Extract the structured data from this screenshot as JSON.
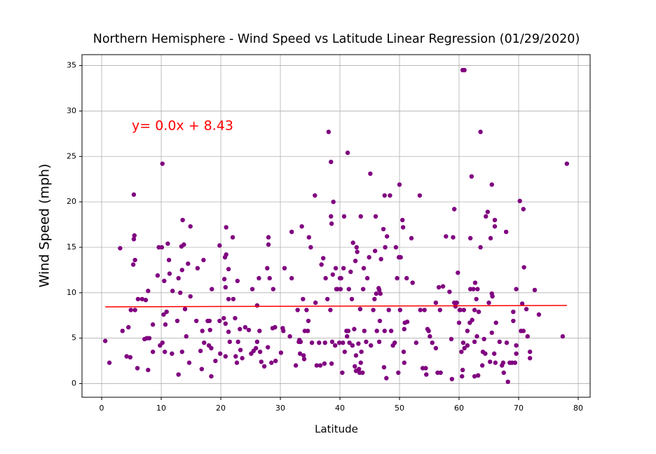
{
  "chart_data": {
    "type": "scatter",
    "title": "Northern Hemisphere - Wind Speed vs Latitude Linear Regression (01/29/2020)",
    "x_label": "Latitude",
    "y_label": "Wind Speed (mph)",
    "annotation": "y= 0.0x + 8.43",
    "annotation_color": "red",
    "color": "purple",
    "grid": true,
    "xlim": [
      -3.3,
      82
    ],
    "ylim": [
      -1.5,
      36.2
    ],
    "xticks": [
      0,
      10,
      20,
      30,
      40,
      50,
      60,
      70,
      80
    ],
    "yticks": [
      0,
      5,
      10,
      15,
      20,
      25,
      30,
      35
    ],
    "regression_line": {
      "color": "red",
      "x": [
        0.6,
        78.1
      ],
      "values": [
        8.45,
        8.6
      ]
    },
    "x": [
      0.6,
      1.3,
      3.1,
      3.5,
      4.2,
      4.5,
      4.8,
      4.9,
      5.4,
      5.4,
      5.3,
      5.5,
      5.6,
      5.6,
      6.0,
      6.1,
      6.8,
      7.2,
      7.4,
      7.6,
      7.8,
      7.8,
      8.0,
      8.6,
      8.6,
      9.4,
      9.6,
      9.8,
      10.1,
      10.2,
      10.2,
      10.4,
      10.5,
      10.6,
      10.7,
      10.9,
      11.1,
      11.3,
      11.4,
      11.8,
      11.9,
      12.7,
      12.9,
      12.9,
      13.2,
      13.4,
      13.5,
      13.5,
      13.6,
      13.8,
      14.0,
      14.2,
      14.5,
      14.7,
      14.9,
      14.9,
      15.9,
      16.1,
      16.6,
      16.8,
      16.9,
      17.1,
      17.2,
      17.8,
      18.0,
      18.1,
      18.2,
      18.4,
      18.5,
      18.4,
      19.1,
      19.8,
      19.8,
      19.9,
      20.5,
      20.6,
      20.7,
      20.8,
      20.8,
      20.8,
      20.9,
      20.9,
      21.3,
      21.3,
      21.3,
      21.5,
      22.0,
      22.1,
      22.4,
      22.5,
      22.7,
      22.8,
      22.9,
      23.2,
      23.3,
      23.6,
      24.1,
      24.7,
      25.1,
      25.3,
      25.5,
      25.9,
      26.1,
      26.1,
      26.4,
      26.5,
      26.6,
      26.8,
      27.3,
      27.8,
      27.9,
      28.0,
      28.0,
      28.2,
      28.5,
      28.7,
      28.8,
      29.1,
      29.2,
      30.1,
      30.4,
      30.5,
      30.7,
      31.6,
      31.9,
      31.9,
      32.6,
      32.9,
      33.1,
      33.2,
      33.3,
      33.4,
      33.6,
      33.8,
      33.9,
      34.0,
      34.1,
      34.4,
      34.6,
      34.7,
      34.8,
      35.1,
      35.3,
      35.8,
      35.9,
      36.1,
      36.5,
      36.7,
      36.9,
      37.2,
      37.4,
      37.5,
      37.6,
      37.9,
      38.1,
      38.4,
      38.5,
      38.5,
      38.6,
      38.6,
      38.7,
      38.8,
      38.9,
      39.2,
      39.3,
      39.4,
      39.6,
      39.9,
      40.0,
      40.1,
      40.2,
      40.4,
      40.5,
      40.6,
      40.7,
      40.8,
      41.1,
      41.2,
      41.3,
      41.4,
      41.5,
      41.6,
      41.8,
      42.0,
      42.1,
      42.2,
      42.4,
      42.5,
      42.6,
      42.7,
      42.7,
      42.8,
      42.9,
      43.1,
      43.2,
      43.3,
      43.4,
      43.5,
      43.5,
      43.6,
      43.8,
      43.9,
      44.0,
      44.1,
      44.4,
      44.6,
      44.9,
      45.1,
      45.2,
      45.6,
      45.8,
      45.9,
      46.0,
      46.1,
      46.2,
      46.5,
      46.6,
      46.6,
      46.7,
      46.8,
      46.9,
      47.3,
      47.4,
      47.5,
      47.5,
      47.6,
      47.8,
      47.9,
      48.2,
      48.4,
      48.6,
      48.9,
      49.2,
      49.4,
      49.6,
      49.8,
      49.9,
      50.0,
      50.1,
      50.2,
      50.5,
      50.6,
      50.7,
      50.8,
      50.8,
      50.9,
      51.2,
      51.3,
      52.0,
      52.2,
      52.8,
      53.4,
      53.5,
      53.9,
      54.2,
      54.4,
      54.5,
      54.7,
      54.9,
      55.1,
      55.5,
      56.1,
      56.1,
      56.4,
      56.6,
      56.8,
      56.9,
      57.3,
      57.8,
      58.4,
      58.7,
      58.8,
      59.0,
      59.2,
      59.2,
      59.4,
      59.6,
      59.8,
      60.0,
      60.1,
      60.2,
      60.4,
      60.5,
      60.6,
      60.9,
      60.6,
      60.7,
      60.8,
      60.9,
      61.4,
      61.4,
      61.8,
      61.9,
      61.9,
      62.1,
      62.2,
      62.4,
      62.6,
      62.6,
      62.6,
      62.7,
      62.9,
      63.0,
      63.1,
      63.2,
      63.3,
      63.6,
      63.6,
      63.9,
      64.0,
      64.2,
      64.4,
      64.5,
      64.8,
      65.0,
      65.2,
      65.3,
      65.5,
      65.5,
      65.5,
      65.6,
      65.9,
      66.0,
      66.0,
      66.1,
      66.2,
      66.8,
      67.2,
      67.4,
      67.5,
      67.9,
      68.0,
      68.2,
      68.5,
      68.9,
      69.1,
      69.1,
      69.4,
      69.6,
      69.6,
      69.6,
      70.2,
      70.4,
      70.6,
      70.8,
      70.8,
      70.9,
      71.3,
      71.5,
      71.9,
      71.9,
      72.7,
      73.4,
      77.4,
      78.1
    ],
    "values": [
      4.7,
      2.3,
      14.9,
      5.8,
      3.0,
      6.2,
      2.9,
      8.1,
      20.8,
      15.9,
      13.1,
      16.3,
      13.6,
      8.1,
      1.7,
      9.3,
      9.3,
      4.9,
      9.2,
      5.0,
      10.2,
      1.5,
      5.0,
      3.5,
      6.5,
      11.9,
      15.0,
      4.2,
      15.0,
      24.2,
      4.5,
      7.6,
      11.3,
      3.5,
      6.5,
      7.9,
      15.4,
      13.6,
      12.1,
      3.3,
      10.2,
      6.9,
      11.6,
      1.0,
      10.0,
      15.1,
      12.5,
      3.5,
      18.0,
      15.3,
      8.2,
      5.2,
      13.2,
      2.3,
      17.3,
      9.6,
      6.9,
      12.7,
      3.6,
      1.6,
      5.8,
      13.6,
      4.5,
      6.9,
      4.2,
      6.9,
      5.9,
      3.9,
      10.4,
      0.8,
      2.5,
      15.2,
      6.9,
      3.3,
      7.2,
      11.5,
      13.9,
      6.6,
      3.0,
      10.6,
      14.2,
      17.2,
      12.6,
      9.3,
      5.7,
      4.6,
      16.1,
      9.3,
      7.2,
      3.0,
      2.3,
      11.3,
      4.6,
      6.0,
      3.7,
      2.8,
      6.2,
      5.9,
      3.3,
      10.4,
      3.6,
      3.9,
      8.6,
      4.6,
      11.6,
      5.8,
      3.5,
      2.4,
      1.9,
      12.7,
      4.0,
      16.1,
      15.3,
      11.6,
      2.3,
      6.1,
      10.4,
      6.2,
      2.5,
      3.4,
      6.1,
      5.8,
      12.7,
      5.2,
      16.7,
      11.6,
      2.0,
      8.1,
      4.6,
      4.8,
      3.3,
      4.6,
      17.3,
      9.3,
      3.1,
      2.7,
      5.8,
      8.1,
      5.8,
      6.9,
      16.1,
      15.0,
      4.5,
      20.7,
      8.9,
      2.0,
      4.5,
      2.0,
      13.1,
      13.8,
      2.2,
      4.5,
      11.6,
      9.3,
      27.7,
      8.1,
      24.4,
      18.4,
      17.6,
      2.2,
      4.6,
      12.0,
      20.0,
      4.2,
      12.7,
      10.4,
      10.4,
      4.5,
      11.6,
      10.4,
      11.6,
      1.2,
      4.5,
      12.7,
      18.4,
      3.5,
      5.8,
      5.2,
      25.4,
      5.8,
      10.4,
      4.5,
      12.3,
      9.3,
      4.2,
      15.5,
      6.0,
      1.9,
      13.5,
      3.1,
      1.4,
      15.0,
      14.5,
      4.4,
      1.6,
      1.2,
      8.2,
      18.4,
      2.3,
      3.5,
      1.2,
      10.4,
      12.7,
      5.8,
      4.6,
      11.6,
      13.9,
      23.1,
      4.2,
      8.1,
      9.3,
      14.6,
      18.4,
      9.9,
      5.8,
      10.5,
      10.3,
      4.6,
      6.9,
      9.9,
      13.7,
      17.0,
      1.8,
      5.8,
      20.7,
      15.0,
      0.6,
      16.2,
      8.1,
      20.7,
      5.8,
      4.2,
      4.5,
      15.0,
      11.6,
      1.2,
      13.9,
      21.9,
      8.1,
      13.9,
      18.0,
      17.2,
      3.5,
      6.0,
      2.3,
      6.7,
      11.6,
      6.8,
      16.0,
      11.1,
      4.5,
      20.7,
      8.1,
      1.7,
      8.1,
      1.7,
      1.0,
      6.0,
      5.8,
      5.2,
      4.5,
      8.9,
      3.9,
      1.2,
      10.6,
      8.1,
      1.2,
      10.7,
      16.2,
      10.1,
      4.9,
      0.5,
      16.1,
      19.2,
      8.9,
      8.5,
      8.9,
      12.2,
      6.7,
      8.1,
      8.1,
      3.5,
      0.8,
      34.5,
      34.5,
      1.5,
      4.5,
      8.1,
      3.9,
      5.8,
      4.2,
      6.7,
      16.0,
      10.4,
      22.8,
      7.0,
      10.4,
      4.6,
      8.1,
      0.8,
      11.1,
      9.3,
      5.2,
      10.4,
      0.9,
      7.9,
      15.0,
      27.7,
      2.0,
      3.5,
      4.9,
      3.3,
      18.4,
      18.9,
      8.9,
      2.4,
      16.0,
      5.6,
      21.9,
      9.9,
      9.6,
      3.3,
      18.0,
      17.3,
      2.3,
      6.7,
      4.6,
      2.0,
      2.3,
      1.2,
      16.7,
      4.5,
      0.2,
      2.3,
      2.3,
      6.9,
      7.9,
      2.3,
      3.3,
      10.4,
      4.2,
      20.1,
      5.8,
      8.8,
      5.8,
      19.2,
      12.8,
      8.2,
      5.2,
      3.5,
      2.8,
      10.3,
      7.6,
      5.2,
      24.2
    ]
  }
}
